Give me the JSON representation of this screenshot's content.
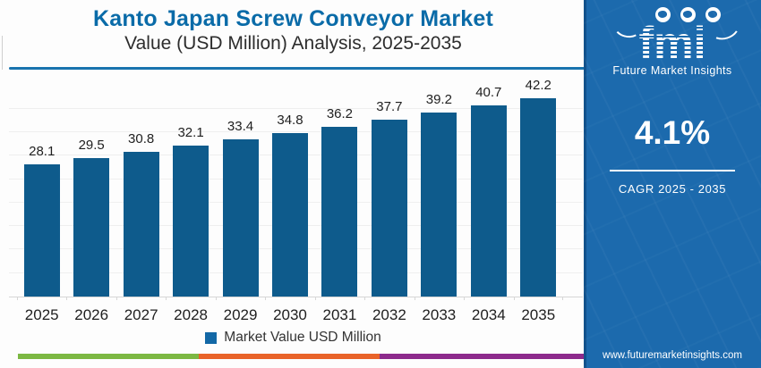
{
  "header": {
    "title": "Kanto Japan Screw Conveyor Market",
    "subtitle": "Value (USD Million) Analysis, 2025-2035"
  },
  "legend": {
    "label": "Market Value USD Million"
  },
  "chart_data": {
    "type": "bar",
    "categories": [
      "2025",
      "2026",
      "2027",
      "2028",
      "2029",
      "2030",
      "2031",
      "2032",
      "2033",
      "2034",
      "2035"
    ],
    "values": [
      28.1,
      29.5,
      30.8,
      32.1,
      33.4,
      34.8,
      36.2,
      37.7,
      39.2,
      40.7,
      42.2
    ],
    "title": "Kanto Japan Screw Conveyor Market Value (USD Million) Analysis, 2025-2035",
    "xlabel": "",
    "ylabel": "",
    "ylim": [
      0,
      47
    ],
    "grid_step": 5,
    "grid": true,
    "data_labels": true,
    "legend_entries": [
      "Market Value USD Million"
    ],
    "legend_position": "bottom",
    "bar_color": "#0e5b8c"
  },
  "sidebar": {
    "logo_text": "fmi",
    "logo_tagline": "Future Market Insights",
    "cagr_value": "4.1%",
    "cagr_label": "CAGR 2025 - 2035",
    "website": "www.futuremarketinsights.com",
    "bg_color": "#1c6aad"
  },
  "footer_strip": {
    "colors": [
      "#7cb843",
      "#e96329",
      "#8d2a8c"
    ]
  },
  "colors": {
    "title_blue": "#0a6ba8",
    "divider_blue": "#1873ae",
    "bar_blue": "#0e5b8c",
    "legend_swatch": "#1368a6"
  }
}
